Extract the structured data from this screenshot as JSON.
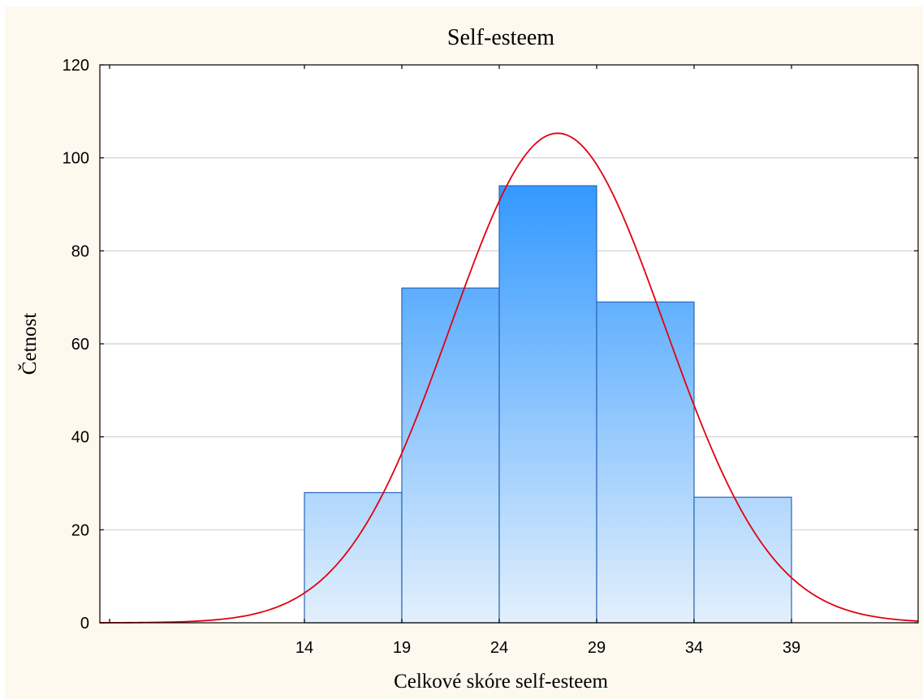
{
  "chart_data": {
    "type": "bar",
    "title": "Self-esteem",
    "xlabel": "Celkové skóre self-esteem",
    "ylabel": "Četnost",
    "bins": [
      {
        "from": 14,
        "to": 19,
        "value": 28
      },
      {
        "from": 19,
        "to": 24,
        "value": 72
      },
      {
        "from": 24,
        "to": 29,
        "value": 94
      },
      {
        "from": 29,
        "to": 34,
        "value": 69
      },
      {
        "from": 34,
        "to": 39,
        "value": 27
      }
    ],
    "x_tick_labels": [
      "14",
      "19",
      "24",
      "29",
      "34",
      "39"
    ],
    "y_tick_labels": [
      "0",
      "20",
      "40",
      "60",
      "80",
      "100",
      "120"
    ],
    "xlim": [
      3.5,
      45.5
    ],
    "ylim": [
      0,
      120
    ],
    "grid": true,
    "normal_curve": {
      "peak_x": 27,
      "peak_y": 105.3
    },
    "colors": {
      "bar_fill_top": "#3399ff",
      "bar_fill_bottom": "#e3f0fc",
      "bar_edge": "#2a64b8",
      "curve": "#e3000f",
      "background": "#fdf9ee",
      "plot_area": "#ffffff"
    }
  }
}
